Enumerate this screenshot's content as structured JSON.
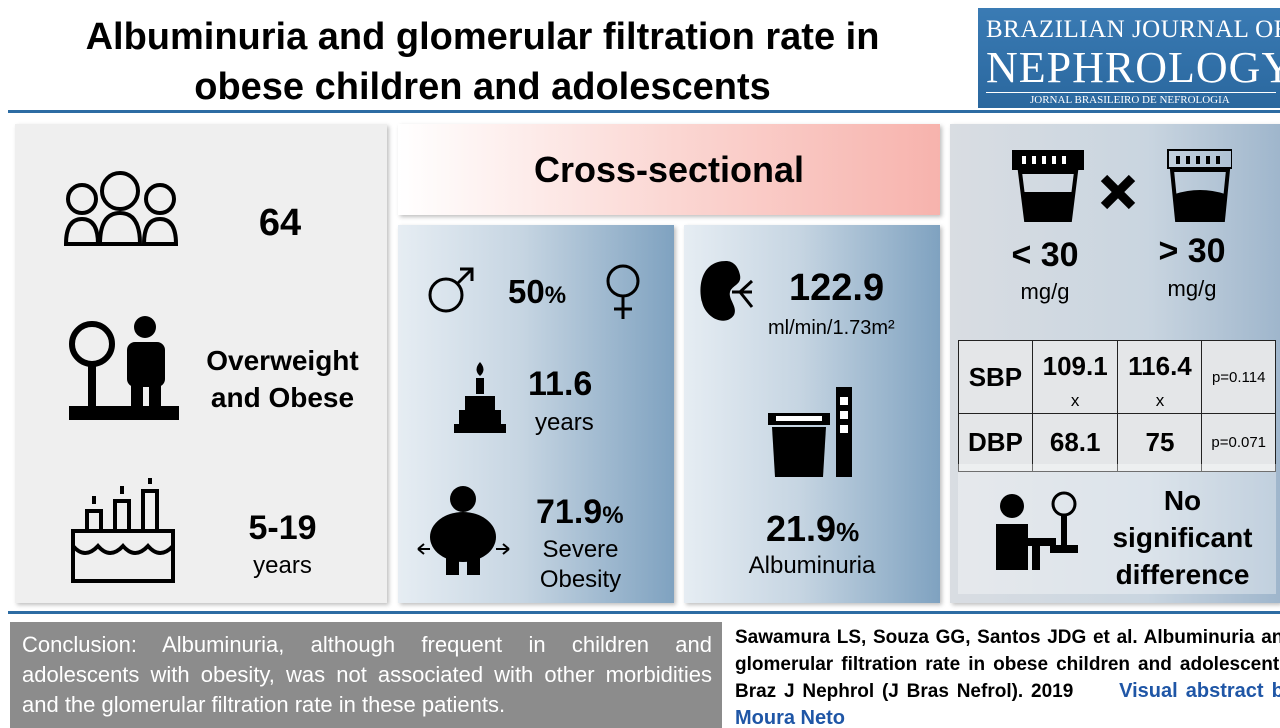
{
  "header": {
    "title_lines": [
      "Albuminuria and glomerular filtration rate in",
      "obese children and adolescents"
    ],
    "logo": {
      "line1": "BRAZILIAN JOURNAL OF",
      "line2": "NEPHROLOGY",
      "line3": "JORNAL BRASILEIRO DE NEFROLOGIA"
    }
  },
  "population": {
    "count": "64",
    "group_lines": [
      "Overweight",
      "and Obese"
    ],
    "age_range": "5-19",
    "age_unit": "years"
  },
  "design": "Cross-sectional",
  "demographics": {
    "sex_value": "50",
    "sex_unit": "%",
    "mean_age": "11.6",
    "mean_age_unit": "years",
    "severe_obesity_value": "71.9",
    "severe_obesity_unit": "%",
    "severe_obesity_lines": [
      "Severe",
      "Obesity"
    ]
  },
  "renal": {
    "gfr": "122.9",
    "gfr_unit": "ml/min/1.73m²",
    "albuminuria_value": "21.9",
    "albuminuria_unit": "%",
    "albuminuria_label": "Albuminuria"
  },
  "comparison": {
    "low_group": "< 30",
    "low_unit": "mg/g",
    "high_group": "> 30",
    "high_unit": "mg/g",
    "table": {
      "rows": [
        [
          "SBP",
          "109.1",
          "116.4",
          "p=0.114"
        ],
        [
          "DBP",
          "68.1",
          "75",
          "p=0.071"
        ]
      ],
      "separator": "x"
    },
    "result_lines": [
      "No",
      "significant",
      "difference"
    ]
  },
  "footer": {
    "conclusion": "Conclusion: Albuminuria, although frequent in children and adolescents with obesity, was not associated with other morbidities and the glomerular filtration rate in these patients.",
    "citation": "Sawamura LS, Souza GG, Santos JDG et al. Albuminuria and glomerular filtration rate in obese children and adolescents. Braz J Nephrol (J Bras Nefrol). 2019",
    "credit": "Visual abstract by Moura Neto"
  }
}
